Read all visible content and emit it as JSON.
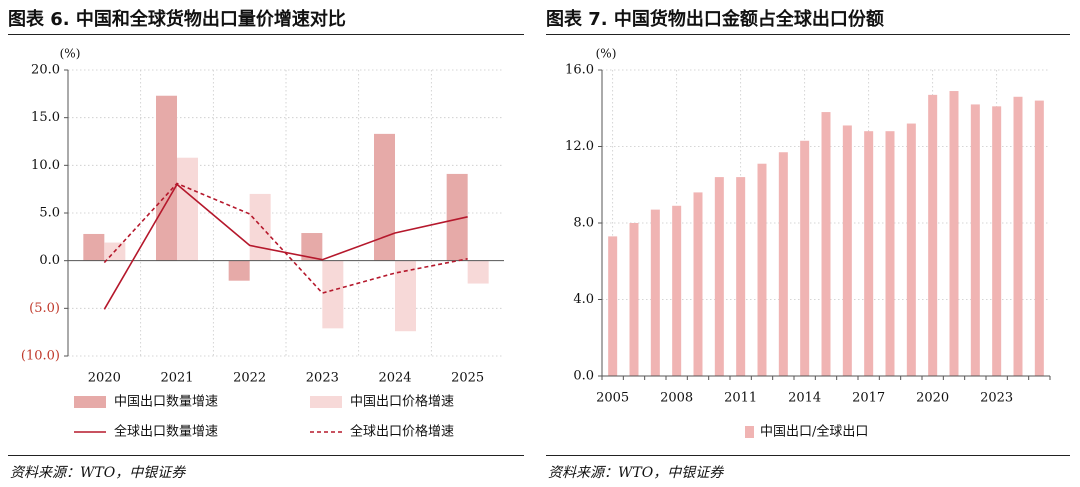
{
  "left": {
    "title": "图表 6. 中国和全球货物出口量价增速对比",
    "source": "资料来源：WTO，中银证券",
    "chart_data": {
      "type": "bar",
      "categories": [
        "2020",
        "2021",
        "2022",
        "2023",
        "2024",
        "2025"
      ],
      "unit": "(%)",
      "ylim": [
        -10,
        20
      ],
      "yticks": [
        {
          "value": 20,
          "label": "20.0"
        },
        {
          "value": 15,
          "label": "15.0"
        },
        {
          "value": 10,
          "label": "10.0"
        },
        {
          "value": 5,
          "label": "5.0"
        },
        {
          "value": 0,
          "label": "0.0"
        },
        {
          "value": -5,
          "label": "(5.0)"
        },
        {
          "value": -10,
          "label": "(10.0)"
        }
      ],
      "grid": true,
      "legend_position": "bottom",
      "series": [
        {
          "name": "中国出口数量增速",
          "kind": "bar",
          "color": "#e6aaa8",
          "values": [
            2.8,
            17.3,
            -2.1,
            2.9,
            13.3,
            9.1
          ]
        },
        {
          "name": "中国出口价格增速",
          "kind": "bar",
          "color": "#f7d9d8",
          "values": [
            1.9,
            10.8,
            7.0,
            -7.1,
            -7.4,
            -2.4
          ]
        },
        {
          "name": "全球出口数量增速",
          "kind": "line",
          "dash": false,
          "color": "#b5182c",
          "values": [
            -5.1,
            8.0,
            1.6,
            0.1,
            2.9,
            4.6
          ]
        },
        {
          "name": "全球出口价格增速",
          "kind": "line",
          "dash": true,
          "color": "#b5182c",
          "values": [
            -0.2,
            8.1,
            4.9,
            -3.4,
            -1.3,
            0.2
          ]
        }
      ]
    }
  },
  "right": {
    "title": "图表 7. 中国货物出口金额占全球出口份额",
    "source": "资料来源：WTO，中银证券",
    "chart_data": {
      "type": "bar",
      "x": [
        "2005",
        "2006",
        "2007",
        "2008",
        "2009",
        "2010",
        "2011",
        "2012",
        "2013",
        "2014",
        "2015",
        "2016",
        "2017",
        "2018",
        "2019",
        "2020",
        "2021",
        "2022",
        "2023",
        "2024",
        "2025"
      ],
      "xtick_labels": [
        "2005",
        "2008",
        "2011",
        "2014",
        "2017",
        "2020",
        "2023"
      ],
      "unit": "(%)",
      "ylim": [
        0,
        16
      ],
      "yticks": [
        {
          "value": 16,
          "label": "16.0"
        },
        {
          "value": 12,
          "label": "12.0"
        },
        {
          "value": 8,
          "label": "8.0"
        },
        {
          "value": 4,
          "label": "4.0"
        },
        {
          "value": 0,
          "label": "0.0"
        }
      ],
      "grid": true,
      "legend_position": "bottom",
      "series": [
        {
          "name": "中国出口/全球出口",
          "color": "#f0b4b3",
          "values": [
            7.3,
            8.0,
            8.7,
            8.9,
            9.6,
            10.4,
            10.4,
            11.1,
            11.7,
            12.3,
            13.8,
            13.1,
            12.8,
            12.8,
            13.2,
            14.7,
            14.9,
            14.2,
            14.1,
            14.6,
            14.4
          ]
        }
      ]
    }
  }
}
